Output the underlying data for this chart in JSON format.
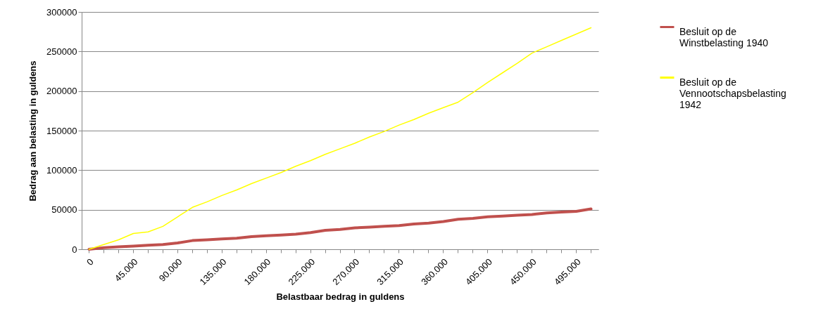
{
  "chart_data": {
    "type": "line",
    "xlabel": "Belastbaar bedrag in guldens",
    "ylabel": "Bedrag aan belasting in guldens",
    "categories": [
      "0",
      null,
      null,
      "45.000",
      null,
      null,
      "90.000",
      null,
      null,
      "135.000",
      null,
      null,
      "180.000",
      null,
      null,
      "225.000",
      null,
      null,
      "270.000",
      null,
      null,
      "315.000",
      null,
      null,
      "360.000",
      null,
      null,
      "405.000",
      null,
      null,
      "450.000",
      null,
      null,
      "495.000",
      null
    ],
    "series": [
      {
        "name": "Besluit op de Winstbelasting 1940",
        "color": "#c0504d",
        "values": [
          0,
          2000,
          3000,
          4000,
          5000,
          6000,
          8000,
          11000,
          12000,
          13000,
          14000,
          16000,
          17000,
          18000,
          19000,
          21000,
          24000,
          25000,
          27000,
          28000,
          29000,
          30000,
          32000,
          33000,
          35000,
          38000,
          39000,
          41000,
          42000,
          43000,
          44000,
          46000,
          47000,
          48000,
          51000
        ]
      },
      {
        "name": "Besluit op de Vennootschapsbelasting 1942",
        "color": "#ffff00",
        "values": [
          0,
          6000,
          12000,
          20000,
          22000,
          29000,
          41000,
          53000,
          60000,
          68000,
          75000,
          83000,
          90000,
          97000,
          105000,
          112000,
          120000,
          127000,
          134000,
          142000,
          149000,
          157000,
          164000,
          172000,
          179000,
          186000,
          198000,
          211000,
          223000,
          235000,
          248000,
          256000,
          264000,
          272000,
          280000
        ]
      }
    ],
    "ylim": [
      0,
      300000
    ],
    "yticks": [
      0,
      50000,
      100000,
      150000,
      200000,
      250000,
      300000
    ],
    "grid": "y",
    "legend": "right",
    "line_style": "solid",
    "marker": "none"
  }
}
